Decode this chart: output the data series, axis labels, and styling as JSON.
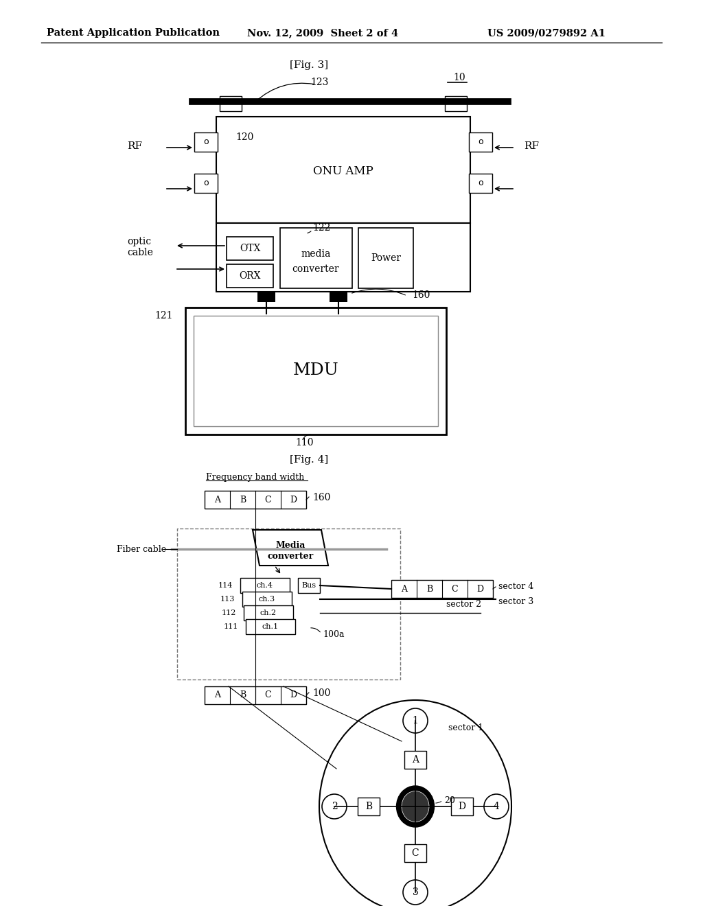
{
  "bg_color": "#ffffff",
  "header_left": "Patent Application Publication",
  "header_mid": "Nov. 12, 2009  Sheet 2 of 4",
  "header_right": "US 2009/0279892 A1",
  "fig3_label": "[Fig. 3]",
  "fig4_label": "[Fig. 4]"
}
